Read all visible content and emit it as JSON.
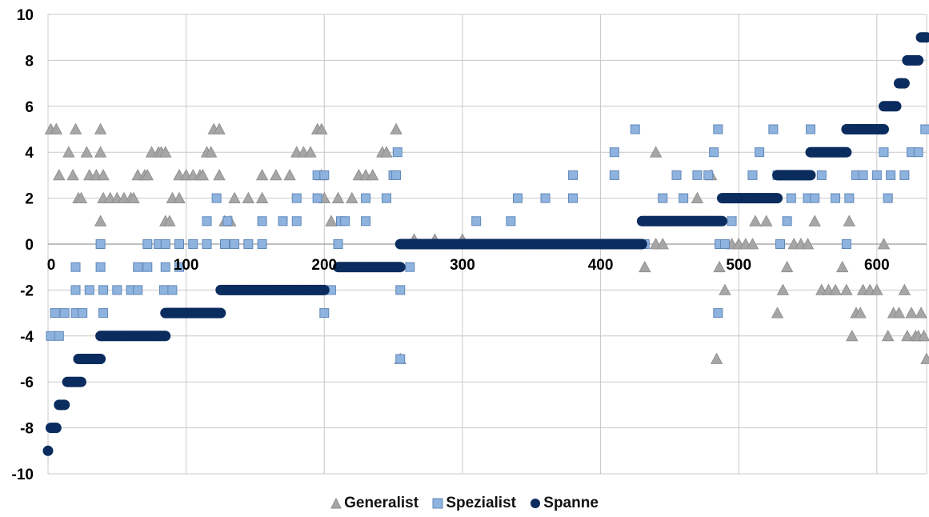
{
  "chart_data": {
    "type": "scatter",
    "xlim": [
      0,
      636
    ],
    "ylim": [
      -10,
      10
    ],
    "x_ticks": [
      "0",
      "100",
      "200",
      "300",
      "400",
      "500",
      "600"
    ],
    "y_ticks": [
      "10",
      "8",
      "6",
      "4",
      "2",
      "0",
      "-2",
      "-4",
      "-6",
      "-8",
      "-10"
    ],
    "grid": true,
    "legend_position": "bottom",
    "series": [
      {
        "name": "Generalist",
        "marker": "triangle",
        "color": "#a6a6a6",
        "points": [
          [
            2,
            5
          ],
          [
            6,
            5
          ],
          [
            15,
            4
          ],
          [
            28,
            4
          ],
          [
            38,
            4
          ],
          [
            20,
            5
          ],
          [
            38,
            5
          ],
          [
            8,
            3
          ],
          [
            18,
            3
          ],
          [
            30,
            3
          ],
          [
            35,
            3
          ],
          [
            40,
            3
          ],
          [
            22,
            2
          ],
          [
            24,
            2
          ],
          [
            40,
            2
          ],
          [
            45,
            2
          ],
          [
            50,
            2
          ],
          [
            55,
            2
          ],
          [
            60,
            2
          ],
          [
            62,
            2
          ],
          [
            38,
            1
          ],
          [
            65,
            3
          ],
          [
            70,
            3
          ],
          [
            72,
            3
          ],
          [
            75,
            4
          ],
          [
            80,
            4
          ],
          [
            82,
            4
          ],
          [
            85,
            4
          ],
          [
            85,
            1
          ],
          [
            88,
            1
          ],
          [
            90,
            2
          ],
          [
            95,
            2
          ],
          [
            95,
            3
          ],
          [
            100,
            3
          ],
          [
            105,
            3
          ],
          [
            110,
            3
          ],
          [
            112,
            3
          ],
          [
            115,
            4
          ],
          [
            118,
            4
          ],
          [
            120,
            5
          ],
          [
            124,
            5
          ],
          [
            124,
            3
          ],
          [
            128,
            1
          ],
          [
            132,
            1
          ],
          [
            135,
            2
          ],
          [
            145,
            2
          ],
          [
            155,
            2
          ],
          [
            155,
            3
          ],
          [
            165,
            3
          ],
          [
            175,
            3
          ],
          [
            180,
            4
          ],
          [
            185,
            4
          ],
          [
            190,
            4
          ],
          [
            195,
            5
          ],
          [
            198,
            5
          ],
          [
            198,
            3
          ],
          [
            200,
            2
          ],
          [
            205,
            1
          ],
          [
            210,
            2
          ],
          [
            220,
            2
          ],
          [
            225,
            3
          ],
          [
            230,
            3
          ],
          [
            235,
            3
          ],
          [
            242,
            4
          ],
          [
            245,
            4
          ],
          [
            252,
            5
          ],
          [
            255,
            -5
          ],
          [
            265,
            0.2
          ],
          [
            280,
            0.2
          ],
          [
            300,
            0.2
          ],
          [
            432,
            -1
          ],
          [
            440,
            0
          ],
          [
            445,
            0
          ],
          [
            484,
            -5
          ],
          [
            486,
            -1
          ],
          [
            490,
            -2
          ],
          [
            495,
            0
          ],
          [
            500,
            0
          ],
          [
            505,
            0
          ],
          [
            510,
            0
          ],
          [
            512,
            1
          ],
          [
            520,
            1
          ],
          [
            528,
            -3
          ],
          [
            532,
            -2
          ],
          [
            535,
            -1
          ],
          [
            540,
            0
          ],
          [
            545,
            0
          ],
          [
            550,
            0
          ],
          [
            555,
            1
          ],
          [
            560,
            -2
          ],
          [
            565,
            -2
          ],
          [
            570,
            -2
          ],
          [
            575,
            -1
          ],
          [
            578,
            -2
          ],
          [
            580,
            1
          ],
          [
            582,
            -4
          ],
          [
            585,
            -3
          ],
          [
            588,
            -3
          ],
          [
            590,
            -2
          ],
          [
            595,
            -2
          ],
          [
            600,
            -2
          ],
          [
            605,
            0
          ],
          [
            608,
            -4
          ],
          [
            612,
            -3
          ],
          [
            616,
            -3
          ],
          [
            620,
            -2
          ],
          [
            622,
            -4
          ],
          [
            625,
            -3
          ],
          [
            628,
            -4
          ],
          [
            630,
            -4
          ],
          [
            632,
            -3
          ],
          [
            634,
            -4
          ],
          [
            636,
            -5
          ],
          [
            440,
            4
          ],
          [
            470,
            2
          ],
          [
            480,
            3
          ]
        ]
      },
      {
        "name": "Spezialist",
        "marker": "square",
        "color": "#8fb3df",
        "points": [
          [
            2,
            -4
          ],
          [
            8,
            -4
          ],
          [
            5,
            -3
          ],
          [
            12,
            -3
          ],
          [
            20,
            -3
          ],
          [
            25,
            -3
          ],
          [
            40,
            -3
          ],
          [
            20,
            -2
          ],
          [
            30,
            -2
          ],
          [
            40,
            -2
          ],
          [
            50,
            -2
          ],
          [
            60,
            -2
          ],
          [
            65,
            -2
          ],
          [
            20,
            -1
          ],
          [
            38,
            -1
          ],
          [
            65,
            -1
          ],
          [
            72,
            -1
          ],
          [
            85,
            -1
          ],
          [
            95,
            -1
          ],
          [
            38,
            0
          ],
          [
            72,
            0
          ],
          [
            80,
            0
          ],
          [
            85,
            0
          ],
          [
            95,
            0
          ],
          [
            105,
            0
          ],
          [
            115,
            0
          ],
          [
            128,
            0
          ],
          [
            135,
            0
          ],
          [
            145,
            0
          ],
          [
            155,
            0
          ],
          [
            84,
            -2
          ],
          [
            90,
            -2
          ],
          [
            115,
            1
          ],
          [
            130,
            1
          ],
          [
            155,
            1
          ],
          [
            170,
            1
          ],
          [
            180,
            1
          ],
          [
            122,
            2
          ],
          [
            180,
            2
          ],
          [
            195,
            2
          ],
          [
            195,
            3
          ],
          [
            200,
            3
          ],
          [
            200,
            -3
          ],
          [
            205,
            -2
          ],
          [
            210,
            0
          ],
          [
            212,
            1
          ],
          [
            215,
            1
          ],
          [
            230,
            1
          ],
          [
            230,
            2
          ],
          [
            245,
            2
          ],
          [
            250,
            3
          ],
          [
            252,
            3
          ],
          [
            253,
            4
          ],
          [
            255,
            -2
          ],
          [
            255,
            -5
          ],
          [
            262,
            -1
          ],
          [
            310,
            1
          ],
          [
            335,
            1
          ],
          [
            340,
            2
          ],
          [
            360,
            2
          ],
          [
            380,
            2
          ],
          [
            380,
            3
          ],
          [
            410,
            3
          ],
          [
            410,
            4
          ],
          [
            425,
            5
          ],
          [
            432,
            0
          ],
          [
            445,
            2
          ],
          [
            460,
            2
          ],
          [
            455,
            3
          ],
          [
            470,
            3
          ],
          [
            478,
            3
          ],
          [
            482,
            4
          ],
          [
            485,
            5
          ],
          [
            485,
            -3
          ],
          [
            486,
            0
          ],
          [
            490,
            0
          ],
          [
            495,
            1
          ],
          [
            510,
            3
          ],
          [
            515,
            4
          ],
          [
            525,
            5
          ],
          [
            528,
            3
          ],
          [
            530,
            0
          ],
          [
            535,
            1
          ],
          [
            538,
            2
          ],
          [
            550,
            2
          ],
          [
            552,
            5
          ],
          [
            555,
            2
          ],
          [
            560,
            3
          ],
          [
            565,
            4
          ],
          [
            570,
            2
          ],
          [
            578,
            0
          ],
          [
            580,
            2
          ],
          [
            585,
            3
          ],
          [
            590,
            3
          ],
          [
            600,
            3
          ],
          [
            605,
            4
          ],
          [
            608,
            2
          ],
          [
            610,
            3
          ],
          [
            620,
            3
          ],
          [
            625,
            4
          ],
          [
            630,
            4
          ],
          [
            635,
            5
          ]
        ]
      },
      {
        "name": "Spanne",
        "marker": "circle",
        "color": "#0b2c5e",
        "segments": [
          [
            0,
            0,
            -9
          ],
          [
            2,
            6,
            -8
          ],
          [
            8,
            12,
            -7
          ],
          [
            14,
            24,
            -6
          ],
          [
            22,
            38,
            -5
          ],
          [
            38,
            85,
            -4
          ],
          [
            85,
            125,
            -3
          ],
          [
            125,
            200,
            -2
          ],
          [
            210,
            255,
            -1
          ],
          [
            255,
            430,
            0
          ],
          [
            430,
            488,
            1
          ],
          [
            488,
            528,
            2
          ],
          [
            528,
            552,
            3
          ],
          [
            552,
            578,
            4
          ],
          [
            578,
            605,
            5
          ],
          [
            605,
            614,
            6
          ],
          [
            616,
            620,
            7
          ],
          [
            622,
            630,
            8
          ],
          [
            632,
            636,
            9
          ]
        ]
      }
    ]
  }
}
